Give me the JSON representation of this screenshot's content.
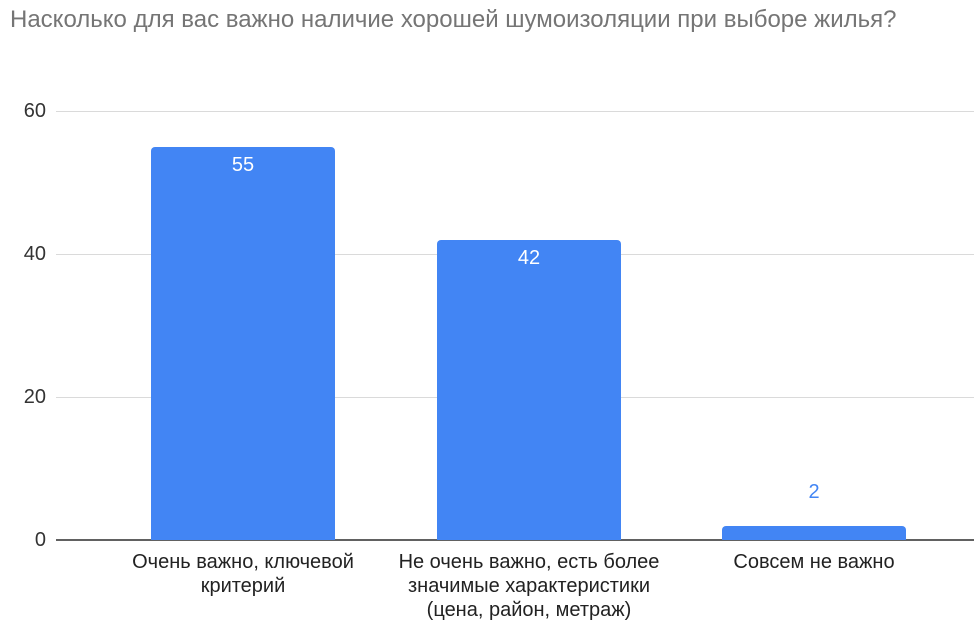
{
  "chart_data": {
    "type": "bar",
    "title": "Насколько для вас важно наличие хорошей шумоизоляции при выборе жилья?",
    "categories": [
      "Очень важно, ключевой критерий",
      "Не очень важно, есть более значимые характеристики (цена, район, метраж)",
      "Совсем не важно"
    ],
    "values": [
      55,
      42,
      2
    ],
    "xlabel": "",
    "ylabel": "",
    "ylim": [
      0,
      60
    ],
    "yticks": [
      0,
      20,
      40,
      60
    ],
    "grid": true,
    "legend": "none",
    "value_labels": "on bars (white inside; series-blue above bar when bar too short)"
  },
  "colors": {
    "bar": "#4285f4",
    "value_label_inside": "#ffffff",
    "value_label_outside": "#4285f4",
    "title_text": "#757575",
    "y_tick_text": "#333333",
    "category_text": "#222222",
    "gridline": "#dadada",
    "baseline": "#616161",
    "background": "#ffffff"
  }
}
